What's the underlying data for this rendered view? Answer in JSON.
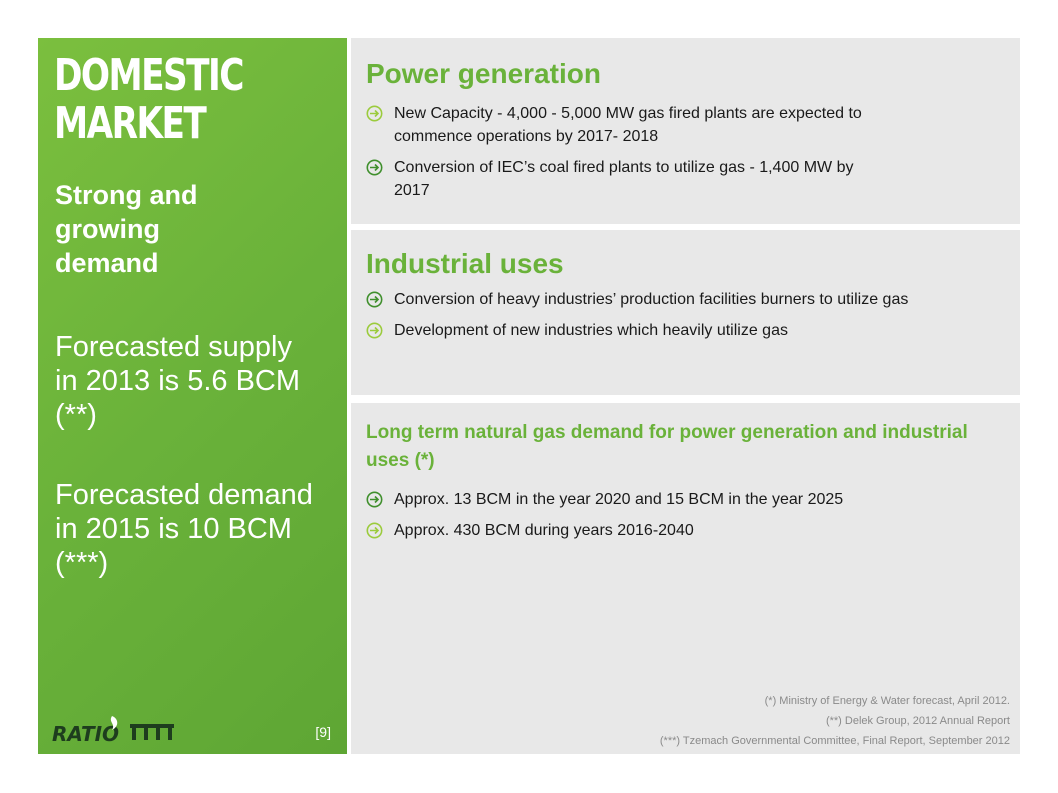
{
  "sidebar": {
    "title_line1": "DOMESTIC",
    "title_line2": "MARKET",
    "subtitle": "Strong and growing demand",
    "stat1": "Forecasted supply in 2013 is 5.6 BCM (**)",
    "stat2": "Forecasted demand in 2015 is 10 BCM (***)",
    "logo_text": "RATIO",
    "page_number": "[9]"
  },
  "power": {
    "heading": "Power generation",
    "bullets": [
      "New Capacity - 4,000 - 5,000 MW gas fired plants are expected to commence operations by 2017- 2018",
      "Conversion of IEC’s coal fired plants to utilize gas - 1,400 MW by 2017"
    ]
  },
  "industrial": {
    "heading": "Industrial uses",
    "bullets": [
      "Conversion of heavy industries’ production facilities burners to utilize gas",
      "Development of new industries which heavily utilize gas"
    ]
  },
  "longterm": {
    "heading": "Long term natural gas demand for power generation and industrial uses (*)",
    "bullets": [
      "Approx. 13 BCM in the year 2020 and 15 BCM in the year 2025",
      "Approx. 430 BCM during years 2016-2040"
    ],
    "footnotes": [
      "(*) Ministry of Energy & Water forecast, April 2012.",
      "(**) Delek Group, 2012 Annual Report",
      "(***) Tzemach Governmental Committee, Final Report, September 2012"
    ]
  },
  "colors": {
    "accent_green": "#6ab23a",
    "panel_gray": "#e8e8e8",
    "arrow_dark": "#3f8f2c",
    "arrow_light": "#9bcb3c"
  }
}
